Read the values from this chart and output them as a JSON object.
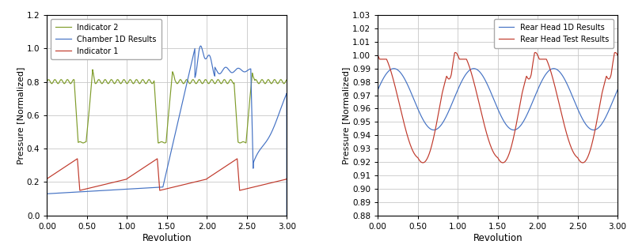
{
  "chart1": {
    "xlabel": "Revolution",
    "ylabel": "Pressure [Normalized]",
    "xlim": [
      0.0,
      3.0
    ],
    "ylim": [
      0.0,
      1.2
    ],
    "xticks": [
      0.0,
      0.5,
      1.0,
      1.5,
      2.0,
      2.5,
      3.0
    ],
    "yticks": [
      0.0,
      0.2,
      0.4,
      0.6,
      0.8,
      1.0,
      1.2
    ],
    "legend": [
      "Chamber 1D Results",
      "Indicator 1",
      "Indicator 2"
    ],
    "colors": {
      "chamber": "#4472c4",
      "ind1": "#c0392b",
      "ind2": "#7f9c2a"
    }
  },
  "chart2": {
    "xlabel": "Revolution",
    "ylabel": "Pressure [Normalized]",
    "xlim": [
      0.0,
      3.0
    ],
    "ylim": [
      0.88,
      1.03
    ],
    "xticks": [
      0.0,
      0.5,
      1.0,
      1.5,
      2.0,
      2.5,
      3.0
    ],
    "yticks": [
      0.88,
      0.89,
      0.9,
      0.91,
      0.92,
      0.93,
      0.94,
      0.95,
      0.96,
      0.97,
      0.98,
      0.99,
      1.0,
      1.01,
      1.02,
      1.03
    ],
    "legend": [
      "Rear Head 1D Results",
      "Rear Head Test Results"
    ],
    "colors": {
      "sim": "#4472c4",
      "test": "#c0392b"
    }
  },
  "bg_color": "#ffffff",
  "grid_color": "#c8c8c8"
}
